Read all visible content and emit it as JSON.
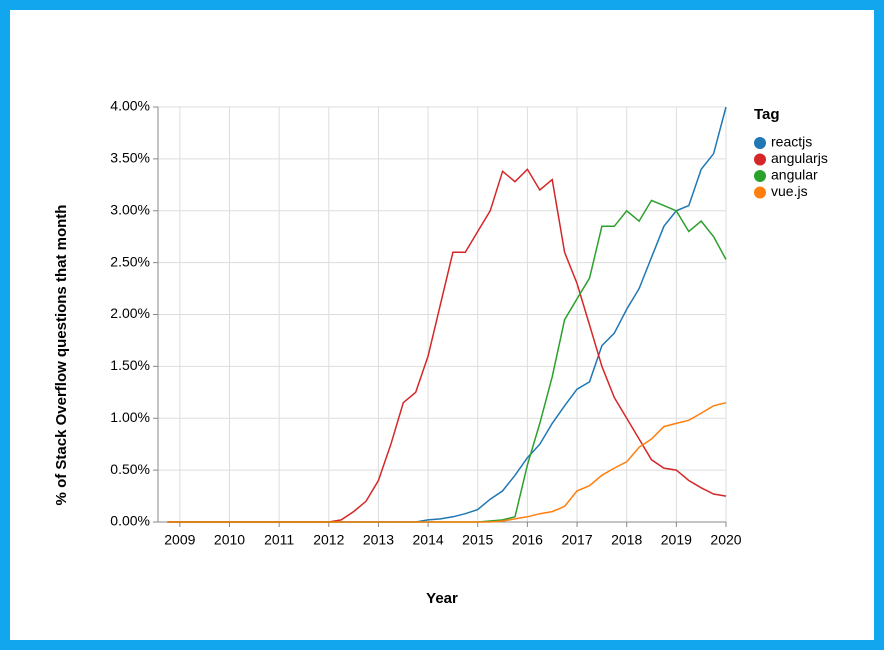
{
  "chart_data": {
    "type": "line",
    "x_label": "Year",
    "y_label": "% of Stack Overflow questions that month",
    "legend_title": "Tag",
    "legend_position": "right",
    "grid": true,
    "xlim": [
      2008.56,
      2020
    ],
    "xticks": [
      2009,
      2010,
      2011,
      2012,
      2013,
      2014,
      2015,
      2016,
      2017,
      2018,
      2019,
      2020
    ],
    "ylim": [
      0,
      4
    ],
    "yticks": [
      {
        "value": 0,
        "label": "0.00%"
      },
      {
        "value": 0.5,
        "label": "0.50%"
      },
      {
        "value": 1,
        "label": "1.00%"
      },
      {
        "value": 1.5,
        "label": "1.50%"
      },
      {
        "value": 2,
        "label": "2.00%"
      },
      {
        "value": 2.5,
        "label": "2.50%"
      },
      {
        "value": 3,
        "label": "3.00%"
      },
      {
        "value": 3.5,
        "label": "3.50%"
      },
      {
        "value": 4,
        "label": "4.00%"
      }
    ],
    "x": [
      2008.75,
      2009,
      2009.25,
      2009.5,
      2009.75,
      2010,
      2010.25,
      2010.5,
      2010.75,
      2011,
      2011.25,
      2011.5,
      2011.75,
      2012,
      2012.25,
      2012.5,
      2012.75,
      2013,
      2013.25,
      2013.5,
      2013.75,
      2014,
      2014.25,
      2014.5,
      2014.75,
      2015,
      2015.25,
      2015.5,
      2015.75,
      2016,
      2016.25,
      2016.5,
      2016.75,
      2017,
      2017.25,
      2017.5,
      2017.75,
      2018,
      2018.25,
      2018.5,
      2018.75,
      2019,
      2019.25,
      2019.5,
      2019.75,
      2020
    ],
    "series": [
      {
        "name": "reactjs",
        "color": "#1f77b4",
        "values": [
          0,
          0,
          0,
          0,
          0,
          0,
          0,
          0,
          0,
          0,
          0,
          0,
          0,
          0,
          0,
          0,
          0,
          0,
          0,
          0,
          0,
          0.02,
          0.03,
          0.05,
          0.08,
          0.12,
          0.22,
          0.3,
          0.45,
          0.62,
          0.75,
          0.95,
          1.12,
          1.28,
          1.35,
          1.7,
          1.82,
          2.05,
          2.25,
          2.55,
          2.85,
          3.0,
          3.05,
          3.4,
          3.55,
          4.0
        ]
      },
      {
        "name": "angularjs",
        "color": "#d62728",
        "values": [
          0,
          0,
          0,
          0,
          0,
          0,
          0,
          0,
          0,
          0,
          0,
          0,
          0,
          0,
          0.02,
          0.1,
          0.2,
          0.4,
          0.75,
          1.15,
          1.25,
          1.6,
          2.1,
          2.6,
          2.6,
          2.8,
          3.0,
          3.38,
          3.28,
          3.4,
          3.2,
          3.3,
          2.6,
          2.3,
          1.9,
          1.5,
          1.2,
          1.0,
          0.8,
          0.6,
          0.52,
          0.5,
          0.4,
          0.33,
          0.27,
          0.25
        ]
      },
      {
        "name": "angular",
        "color": "#2ca02c",
        "values": [
          0,
          0,
          0,
          0,
          0,
          0,
          0,
          0,
          0,
          0,
          0,
          0,
          0,
          0,
          0,
          0,
          0,
          0,
          0,
          0,
          0,
          0,
          0,
          0,
          0,
          0,
          0.01,
          0.02,
          0.05,
          0.55,
          0.95,
          1.4,
          1.95,
          2.15,
          2.35,
          2.85,
          2.85,
          3.0,
          2.9,
          3.1,
          3.05,
          3.0,
          2.8,
          2.9,
          2.75,
          2.53
        ]
      },
      {
        "name": "vue.js",
        "color": "#ff7f0e",
        "values": [
          0,
          0,
          0,
          0,
          0,
          0,
          0,
          0,
          0,
          0,
          0,
          0,
          0,
          0,
          0,
          0,
          0,
          0,
          0,
          0,
          0,
          0,
          0,
          0,
          0,
          0,
          0,
          0.01,
          0.03,
          0.05,
          0.08,
          0.1,
          0.15,
          0.3,
          0.35,
          0.45,
          0.52,
          0.58,
          0.72,
          0.8,
          0.92,
          0.95,
          0.98,
          1.05,
          1.12,
          1.15
        ]
      }
    ]
  }
}
